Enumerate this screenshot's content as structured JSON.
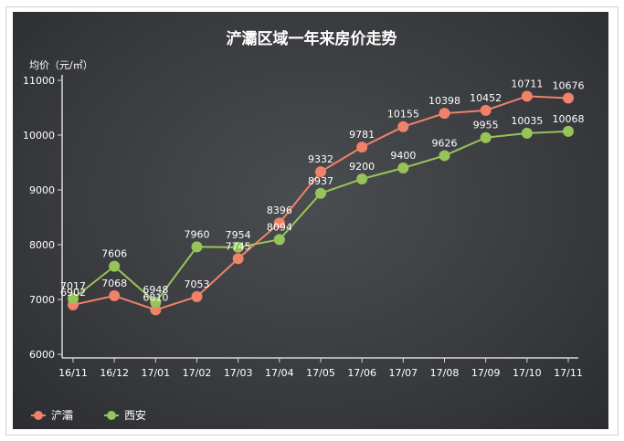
{
  "chart_data": {
    "type": "line",
    "title": "浐灞区域一年来房价走势",
    "ylabel": "均价（元/㎡）",
    "xlabel": "",
    "categories": [
      "16/11",
      "16/12",
      "17/01",
      "17/02",
      "17/03",
      "17/04",
      "17/05",
      "17/06",
      "17/07",
      "17/08",
      "17/09",
      "17/10",
      "17/11"
    ],
    "ylim": [
      6000,
      11000
    ],
    "yticks": [
      6000,
      7000,
      8000,
      9000,
      10000,
      11000
    ],
    "grid": false,
    "legend_position": "bottom-left",
    "series": [
      {
        "name": "浐灞",
        "color": "#f0826a",
        "values": [
          6902,
          7068,
          6810,
          7053,
          7745,
          8396,
          9332,
          9781,
          10155,
          10398,
          10452,
          10711,
          10676
        ],
        "labels": [
          "6902",
          "7068",
          "6810",
          "7053",
          "7745",
          "8396",
          "9332",
          "9781",
          "10155",
          "10398",
          "10452",
          "10711",
          "10676"
        ]
      },
      {
        "name": "西安",
        "color": "#97c459",
        "values": [
          7017,
          7606,
          6948,
          7960,
          7954,
          8094,
          8937,
          9200,
          9400,
          9626,
          9955,
          10035,
          10068
        ],
        "labels": [
          "7017",
          "7606",
          "6948",
          "7960",
          "7954",
          "8094",
          "8937",
          "9200",
          "9400",
          "9626",
          "9955",
          "10035",
          "10068"
        ]
      }
    ]
  }
}
